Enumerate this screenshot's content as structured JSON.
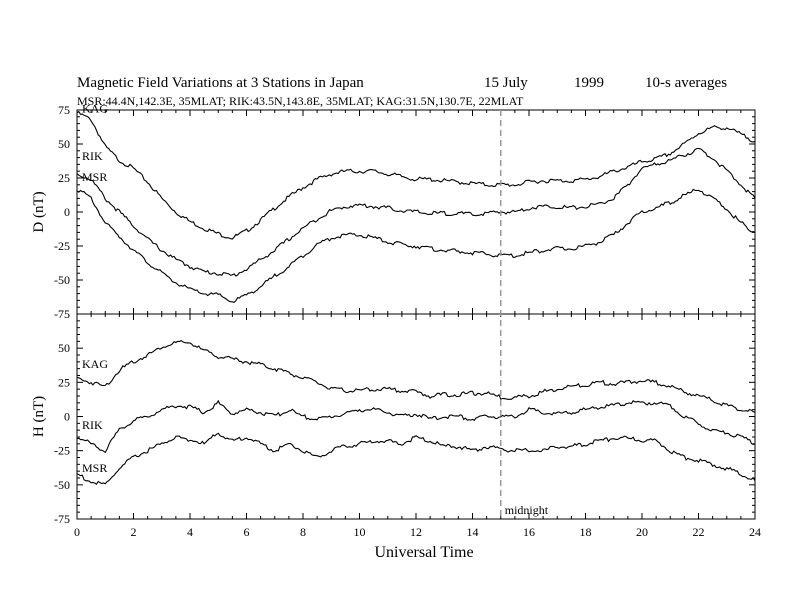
{
  "header": {
    "title": "Magnetic Field Variations at 3 Stations in Japan",
    "date": "15 July",
    "year": "1999",
    "averaging": "10-s averages",
    "stations_line": "MSR:44.4N,142.3E, 35MLAT;  RIK:43.5N,143.8E, 35MLAT;  KAG:31.5N,130.7E, 22MLAT"
  },
  "chart_data": [
    {
      "type": "line",
      "panel": "top",
      "ylabel": "D (nT)",
      "xlabel": "",
      "xlim": [
        0,
        24
      ],
      "ylim": [
        -75,
        75
      ],
      "xticks": [
        0,
        2,
        4,
        6,
        8,
        10,
        12,
        14,
        16,
        18,
        20,
        22,
        24
      ],
      "yticks": [
        75,
        50,
        25,
        0,
        -25,
        -50,
        -75
      ],
      "x": [
        0,
        0.5,
        1,
        1.5,
        2,
        2.5,
        3,
        3.5,
        4,
        4.5,
        5,
        5.5,
        6,
        6.5,
        7,
        7.5,
        8,
        8.5,
        9,
        9.5,
        10,
        10.5,
        11,
        11.5,
        12,
        12.5,
        13,
        13.5,
        14,
        14.5,
        15,
        15.5,
        16,
        16.5,
        17,
        17.5,
        18,
        18.5,
        19,
        19.5,
        20,
        20.5,
        21,
        21.5,
        22,
        22.5,
        23,
        23.5,
        24
      ],
      "series": [
        {
          "name": "KAG",
          "values": [
            73,
            68,
            48,
            38,
            32,
            22,
            10,
            0,
            -7,
            -12,
            -16,
            -19,
            -14,
            -6,
            3,
            11,
            18,
            24,
            28,
            30,
            30,
            30,
            28,
            26,
            24,
            24,
            23,
            22,
            21,
            20,
            20,
            20,
            22,
            23,
            23,
            23,
            24,
            26,
            30,
            33,
            37,
            39,
            43,
            50,
            58,
            62,
            62,
            57,
            52
          ]
        },
        {
          "name": "RIK",
          "values": [
            28,
            24,
            10,
            0,
            -10,
            -20,
            -28,
            -35,
            -40,
            -44,
            -45,
            -47,
            -42,
            -35,
            -28,
            -20,
            -12,
            -5,
            1,
            4,
            5,
            4,
            3,
            1,
            0,
            -1,
            -1,
            -1,
            -2,
            -1,
            0,
            0,
            3,
            4,
            4,
            3,
            4,
            6,
            10,
            20,
            32,
            35,
            38,
            42,
            46,
            40,
            30,
            20,
            10
          ]
        },
        {
          "name": "MSR",
          "values": [
            17,
            10,
            -8,
            -18,
            -28,
            -37,
            -45,
            -52,
            -57,
            -60,
            -61,
            -66,
            -61,
            -55,
            -47,
            -40,
            -32,
            -24,
            -19,
            -17,
            -17,
            -19,
            -22,
            -24,
            -25,
            -27,
            -28,
            -29,
            -30,
            -31,
            -32,
            -32,
            -30,
            -28,
            -27,
            -27,
            -25,
            -22,
            -17,
            -8,
            0,
            3,
            7,
            12,
            17,
            10,
            2,
            -8,
            -15
          ]
        }
      ]
    },
    {
      "type": "line",
      "panel": "bottom",
      "ylabel": "H (nT)",
      "xlabel": "Universal Time",
      "xlim": [
        0,
        24
      ],
      "ylim": [
        -75,
        75
      ],
      "xticks": [
        0,
        2,
        4,
        6,
        8,
        10,
        12,
        14,
        16,
        18,
        20,
        22,
        24
      ],
      "yticks": [
        50,
        25,
        0,
        -25,
        -50,
        -75
      ],
      "x": [
        0,
        0.5,
        1,
        1.5,
        2,
        2.5,
        3,
        3.5,
        4,
        4.5,
        5,
        5.5,
        6,
        6.5,
        7,
        7.5,
        8,
        8.5,
        9,
        9.5,
        10,
        10.5,
        11,
        11.5,
        12,
        12.5,
        13,
        13.5,
        14,
        14.5,
        15,
        15.5,
        16,
        16.5,
        17,
        17.5,
        18,
        18.5,
        19,
        19.5,
        20,
        20.5,
        21,
        21.5,
        22,
        22.5,
        23,
        23.5,
        24
      ],
      "series": [
        {
          "name": "KAG",
          "values": [
            28,
            25,
            22,
            34,
            40,
            45,
            51,
            54,
            54,
            48,
            44,
            42,
            40,
            38,
            35,
            32,
            28,
            25,
            20,
            19,
            19,
            20,
            20,
            19,
            18,
            15,
            16,
            16,
            17,
            17,
            14,
            14,
            15,
            18,
            20,
            22,
            23,
            25,
            24,
            25,
            26,
            25,
            22,
            18,
            15,
            12,
            8,
            5,
            3
          ]
        },
        {
          "name": "RIK",
          "values": [
            -15,
            -20,
            -25,
            -10,
            -3,
            0,
            5,
            8,
            7,
            3,
            10,
            2,
            5,
            3,
            0,
            5,
            0,
            -2,
            0,
            2,
            5,
            5,
            3,
            0,
            2,
            -2,
            0,
            0,
            -2,
            0,
            0,
            0,
            5,
            3,
            2,
            3,
            5,
            7,
            8,
            10,
            10,
            10,
            8,
            0,
            -5,
            -10,
            -12,
            -15,
            -20
          ]
        },
        {
          "name": "MSR",
          "values": [
            -42,
            -48,
            -50,
            -38,
            -30,
            -25,
            -20,
            -15,
            -17,
            -20,
            -12,
            -18,
            -15,
            -20,
            -25,
            -20,
            -25,
            -30,
            -25,
            -22,
            -20,
            -18,
            -18,
            -20,
            -15,
            -18,
            -22,
            -22,
            -25,
            -22,
            -24,
            -25,
            -25,
            -25,
            -22,
            -22,
            -20,
            -18,
            -16,
            -16,
            -17,
            -18,
            -25,
            -30,
            -32,
            -35,
            -38,
            -42,
            -47
          ]
        }
      ]
    }
  ],
  "annotations": {
    "midnight_label": "midnight",
    "midnight_x": 15
  }
}
